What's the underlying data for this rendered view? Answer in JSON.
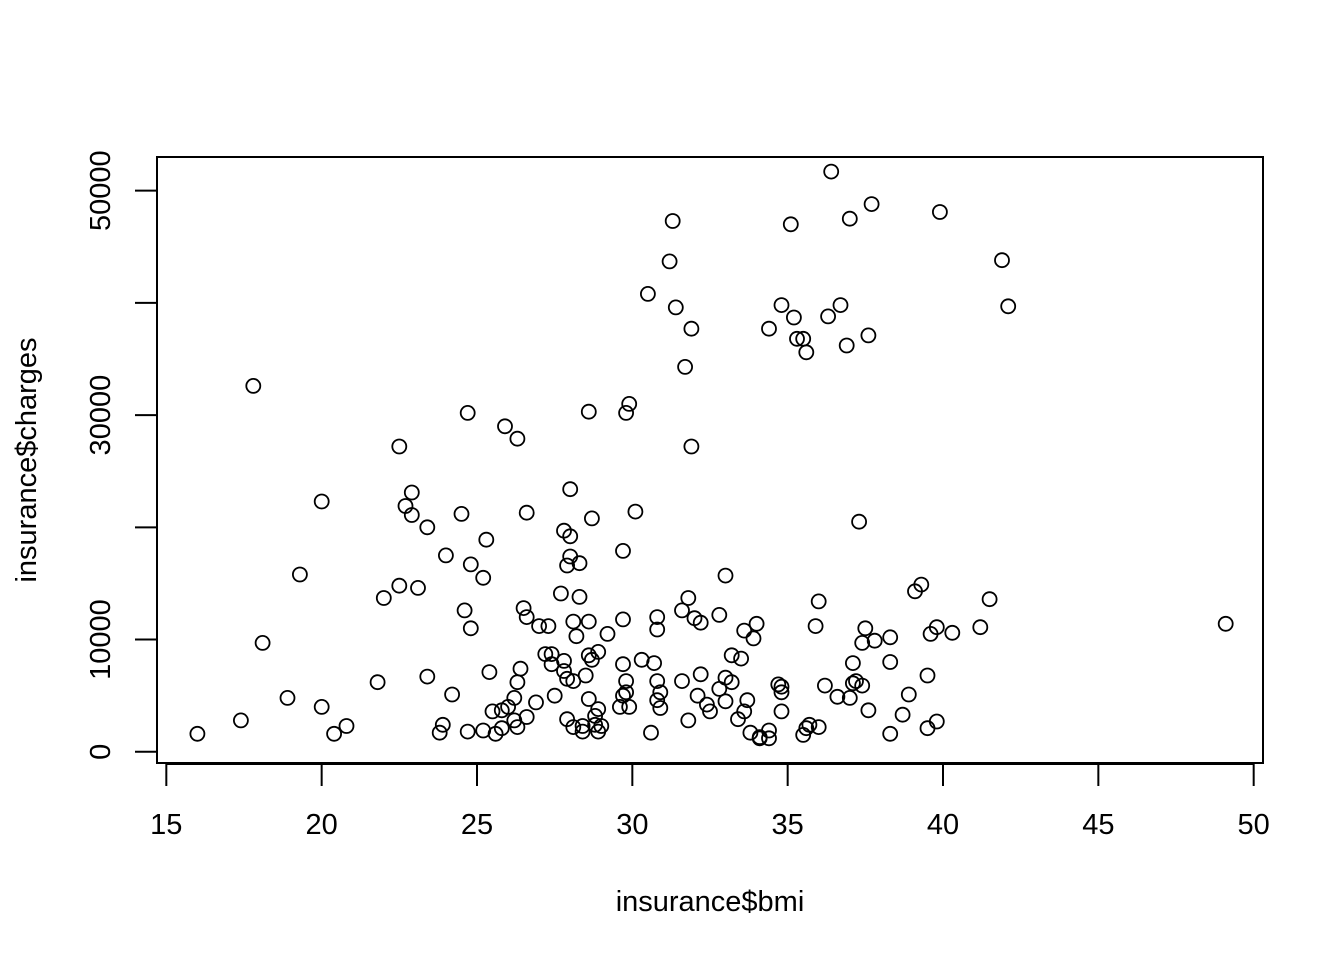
{
  "chart_data": {
    "type": "scatter",
    "title": "",
    "xlabel": "insurance$bmi",
    "ylabel": "insurance$charges",
    "xlim": [
      14.7,
      50.3
    ],
    "ylim": [
      -1000,
      53000
    ],
    "xticks": [
      15,
      20,
      25,
      30,
      35,
      40,
      45,
      50
    ],
    "yticks": [
      0,
      10000,
      30000,
      50000
    ],
    "ytick_labels": [
      "0",
      "10000",
      "30000",
      "50000"
    ],
    "grid": false,
    "legend": "none",
    "marker": "open-circle",
    "points": [
      {
        "x": 16.0,
        "y": 1600
      },
      {
        "x": 17.4,
        "y": 2800
      },
      {
        "x": 17.8,
        "y": 32600
      },
      {
        "x": 18.1,
        "y": 9700
      },
      {
        "x": 18.9,
        "y": 4800
      },
      {
        "x": 19.3,
        "y": 15800
      },
      {
        "x": 20.0,
        "y": 22300
      },
      {
        "x": 20.0,
        "y": 4000
      },
      {
        "x": 20.4,
        "y": 1600
      },
      {
        "x": 20.8,
        "y": 2300
      },
      {
        "x": 21.8,
        "y": 6200
      },
      {
        "x": 22.0,
        "y": 13700
      },
      {
        "x": 22.5,
        "y": 27200
      },
      {
        "x": 22.5,
        "y": 14800
      },
      {
        "x": 22.7,
        "y": 21900
      },
      {
        "x": 22.9,
        "y": 23100
      },
      {
        "x": 22.9,
        "y": 21100
      },
      {
        "x": 23.1,
        "y": 14600
      },
      {
        "x": 23.4,
        "y": 20000
      },
      {
        "x": 23.4,
        "y": 6700
      },
      {
        "x": 23.8,
        "y": 1700
      },
      {
        "x": 23.9,
        "y": 2400
      },
      {
        "x": 24.0,
        "y": 17500
      },
      {
        "x": 24.2,
        "y": 5100
      },
      {
        "x": 24.5,
        "y": 21200
      },
      {
        "x": 24.6,
        "y": 12600
      },
      {
        "x": 24.7,
        "y": 30200
      },
      {
        "x": 24.7,
        "y": 1800
      },
      {
        "x": 24.8,
        "y": 16700
      },
      {
        "x": 24.8,
        "y": 11000
      },
      {
        "x": 25.2,
        "y": 1900
      },
      {
        "x": 25.2,
        "y": 15500
      },
      {
        "x": 25.3,
        "y": 18900
      },
      {
        "x": 25.4,
        "y": 7100
      },
      {
        "x": 25.5,
        "y": 3600
      },
      {
        "x": 25.6,
        "y": 1600
      },
      {
        "x": 25.8,
        "y": 3700
      },
      {
        "x": 25.8,
        "y": 2100
      },
      {
        "x": 25.9,
        "y": 29000
      },
      {
        "x": 26.0,
        "y": 4000
      },
      {
        "x": 26.2,
        "y": 2800
      },
      {
        "x": 26.2,
        "y": 4800
      },
      {
        "x": 26.3,
        "y": 27900
      },
      {
        "x": 26.3,
        "y": 6200
      },
      {
        "x": 26.3,
        "y": 2200
      },
      {
        "x": 26.4,
        "y": 7400
      },
      {
        "x": 26.5,
        "y": 12800
      },
      {
        "x": 26.6,
        "y": 21300
      },
      {
        "x": 26.6,
        "y": 12000
      },
      {
        "x": 26.6,
        "y": 3100
      },
      {
        "x": 26.9,
        "y": 4400
      },
      {
        "x": 27.0,
        "y": 11200
      },
      {
        "x": 27.2,
        "y": 8700
      },
      {
        "x": 27.3,
        "y": 11200
      },
      {
        "x": 27.4,
        "y": 8700
      },
      {
        "x": 27.4,
        "y": 7800
      },
      {
        "x": 27.5,
        "y": 5000
      },
      {
        "x": 27.7,
        "y": 14100
      },
      {
        "x": 27.8,
        "y": 7200
      },
      {
        "x": 27.8,
        "y": 8100
      },
      {
        "x": 27.8,
        "y": 19700
      },
      {
        "x": 27.9,
        "y": 6500
      },
      {
        "x": 27.9,
        "y": 16600
      },
      {
        "x": 27.9,
        "y": 2900
      },
      {
        "x": 28.0,
        "y": 19200
      },
      {
        "x": 28.0,
        "y": 17400
      },
      {
        "x": 28.0,
        "y": 23400
      },
      {
        "x": 28.1,
        "y": 6300
      },
      {
        "x": 28.1,
        "y": 2200
      },
      {
        "x": 28.1,
        "y": 11600
      },
      {
        "x": 28.2,
        "y": 10300
      },
      {
        "x": 28.3,
        "y": 16800
      },
      {
        "x": 28.3,
        "y": 13800
      },
      {
        "x": 28.4,
        "y": 2300
      },
      {
        "x": 28.4,
        "y": 1800
      },
      {
        "x": 28.5,
        "y": 6800
      },
      {
        "x": 28.6,
        "y": 30300
      },
      {
        "x": 28.6,
        "y": 8600
      },
      {
        "x": 28.6,
        "y": 11600
      },
      {
        "x": 28.6,
        "y": 4700
      },
      {
        "x": 28.7,
        "y": 20800
      },
      {
        "x": 28.7,
        "y": 8200
      },
      {
        "x": 28.8,
        "y": 3200
      },
      {
        "x": 28.8,
        "y": 2400
      },
      {
        "x": 28.9,
        "y": 8900
      },
      {
        "x": 28.9,
        "y": 3800
      },
      {
        "x": 28.9,
        "y": 1800
      },
      {
        "x": 29.0,
        "y": 2300
      },
      {
        "x": 29.2,
        "y": 10500
      },
      {
        "x": 29.6,
        "y": 4000
      },
      {
        "x": 29.7,
        "y": 5000
      },
      {
        "x": 29.7,
        "y": 11800
      },
      {
        "x": 29.7,
        "y": 17900
      },
      {
        "x": 29.7,
        "y": 7800
      },
      {
        "x": 29.8,
        "y": 5300
      },
      {
        "x": 29.8,
        "y": 6300
      },
      {
        "x": 29.8,
        "y": 30200
      },
      {
        "x": 29.9,
        "y": 31000
      },
      {
        "x": 29.9,
        "y": 4000
      },
      {
        "x": 30.1,
        "y": 21400
      },
      {
        "x": 30.3,
        "y": 8200
      },
      {
        "x": 30.5,
        "y": 40800
      },
      {
        "x": 30.6,
        "y": 1700
      },
      {
        "x": 30.7,
        "y": 7900
      },
      {
        "x": 30.8,
        "y": 6300
      },
      {
        "x": 30.8,
        "y": 10900
      },
      {
        "x": 30.8,
        "y": 12000
      },
      {
        "x": 30.8,
        "y": 4600
      },
      {
        "x": 30.9,
        "y": 5300
      },
      {
        "x": 30.9,
        "y": 3900
      },
      {
        "x": 31.2,
        "y": 43700
      },
      {
        "x": 31.3,
        "y": 47300
      },
      {
        "x": 31.4,
        "y": 39600
      },
      {
        "x": 31.6,
        "y": 6300
      },
      {
        "x": 31.6,
        "y": 12600
      },
      {
        "x": 31.7,
        "y": 34300
      },
      {
        "x": 31.8,
        "y": 2800
      },
      {
        "x": 31.8,
        "y": 13700
      },
      {
        "x": 31.9,
        "y": 27200
      },
      {
        "x": 31.9,
        "y": 37700
      },
      {
        "x": 32.0,
        "y": 11900
      },
      {
        "x": 32.1,
        "y": 5000
      },
      {
        "x": 32.2,
        "y": 11500
      },
      {
        "x": 32.2,
        "y": 6900
      },
      {
        "x": 32.4,
        "y": 4200
      },
      {
        "x": 32.5,
        "y": 3600
      },
      {
        "x": 32.8,
        "y": 12200
      },
      {
        "x": 32.8,
        "y": 5600
      },
      {
        "x": 33.0,
        "y": 15700
      },
      {
        "x": 33.0,
        "y": 6600
      },
      {
        "x": 33.0,
        "y": 4500
      },
      {
        "x": 33.2,
        "y": 8600
      },
      {
        "x": 33.2,
        "y": 6200
      },
      {
        "x": 33.4,
        "y": 2900
      },
      {
        "x": 33.5,
        "y": 8300
      },
      {
        "x": 33.6,
        "y": 10800
      },
      {
        "x": 33.6,
        "y": 3600
      },
      {
        "x": 33.7,
        "y": 4600
      },
      {
        "x": 33.8,
        "y": 1700
      },
      {
        "x": 33.9,
        "y": 10100
      },
      {
        "x": 34.0,
        "y": 11400
      },
      {
        "x": 34.1,
        "y": 1200
      },
      {
        "x": 34.1,
        "y": 1300
      },
      {
        "x": 34.4,
        "y": 37700
      },
      {
        "x": 34.4,
        "y": 1900
      },
      {
        "x": 34.4,
        "y": 1200
      },
      {
        "x": 34.7,
        "y": 6000
      },
      {
        "x": 34.8,
        "y": 39800
      },
      {
        "x": 34.8,
        "y": 3600
      },
      {
        "x": 34.8,
        "y": 5800
      },
      {
        "x": 34.8,
        "y": 5300
      },
      {
        "x": 35.1,
        "y": 47000
      },
      {
        "x": 35.2,
        "y": 38700
      },
      {
        "x": 35.3,
        "y": 36800
      },
      {
        "x": 35.5,
        "y": 1500
      },
      {
        "x": 35.5,
        "y": 36800
      },
      {
        "x": 35.6,
        "y": 35600
      },
      {
        "x": 35.6,
        "y": 2100
      },
      {
        "x": 35.7,
        "y": 2400
      },
      {
        "x": 35.9,
        "y": 11200
      },
      {
        "x": 36.0,
        "y": 13400
      },
      {
        "x": 36.0,
        "y": 2200
      },
      {
        "x": 36.2,
        "y": 5900
      },
      {
        "x": 36.3,
        "y": 38800
      },
      {
        "x": 36.4,
        "y": 51700
      },
      {
        "x": 36.6,
        "y": 4900
      },
      {
        "x": 36.7,
        "y": 39800
      },
      {
        "x": 36.9,
        "y": 36200
      },
      {
        "x": 37.0,
        "y": 47500
      },
      {
        "x": 37.0,
        "y": 4800
      },
      {
        "x": 37.1,
        "y": 7900
      },
      {
        "x": 37.1,
        "y": 6100
      },
      {
        "x": 37.2,
        "y": 6300
      },
      {
        "x": 37.3,
        "y": 20500
      },
      {
        "x": 37.4,
        "y": 5900
      },
      {
        "x": 37.4,
        "y": 9700
      },
      {
        "x": 37.5,
        "y": 11000
      },
      {
        "x": 37.6,
        "y": 37100
      },
      {
        "x": 37.6,
        "y": 3700
      },
      {
        "x": 37.7,
        "y": 48800
      },
      {
        "x": 37.8,
        "y": 9900
      },
      {
        "x": 38.3,
        "y": 10200
      },
      {
        "x": 38.3,
        "y": 1600
      },
      {
        "x": 38.3,
        "y": 8000
      },
      {
        "x": 38.7,
        "y": 3300
      },
      {
        "x": 38.9,
        "y": 5100
      },
      {
        "x": 39.1,
        "y": 14300
      },
      {
        "x": 39.3,
        "y": 14900
      },
      {
        "x": 39.5,
        "y": 6800
      },
      {
        "x": 39.5,
        "y": 2100
      },
      {
        "x": 39.6,
        "y": 10500
      },
      {
        "x": 39.8,
        "y": 11100
      },
      {
        "x": 39.8,
        "y": 2700
      },
      {
        "x": 39.9,
        "y": 48100
      },
      {
        "x": 40.3,
        "y": 10600
      },
      {
        "x": 41.2,
        "y": 11100
      },
      {
        "x": 41.5,
        "y": 13600
      },
      {
        "x": 41.9,
        "y": 43800
      },
      {
        "x": 42.1,
        "y": 39700
      },
      {
        "x": 49.1,
        "y": 11400
      }
    ]
  }
}
